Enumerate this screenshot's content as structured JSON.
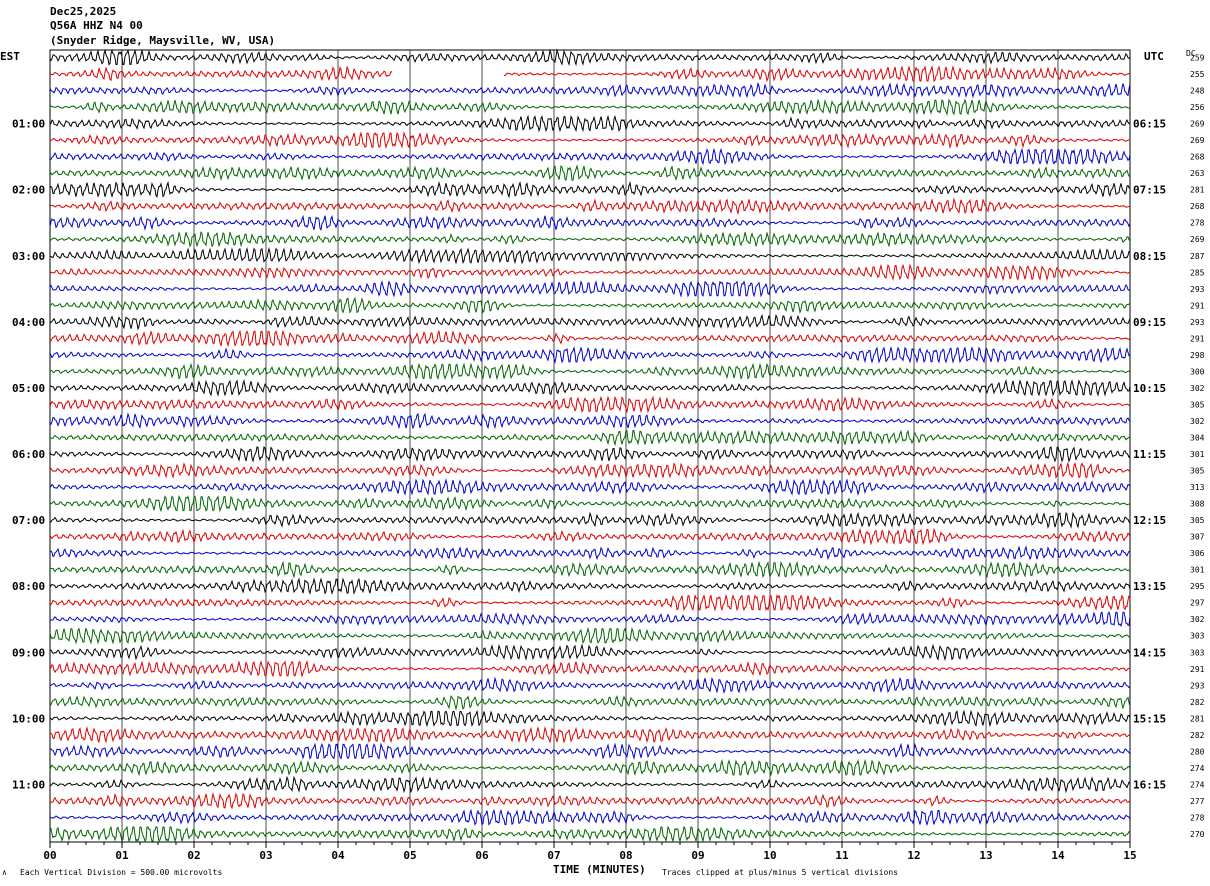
{
  "header": {
    "date": "Dec25,2025",
    "station": "Q56A HHZ N4 00",
    "location": "(Snyder Ridge, Maysville, WV, USA)"
  },
  "left_tz_label": "EST",
  "right_tz_label": "UTC",
  "dc_label": "DC",
  "xlabel": "TIME (MINUTES)",
  "footer_left": "Each Vertical Division =  500.00 microvolts",
  "footer_right": "Traces clipped at plus/minus 5 vertical divisions",
  "chart_data": {
    "type": "line",
    "xlabel": "TIME (MINUTES)",
    "xlim": [
      0,
      15
    ],
    "x_ticks": [
      "00",
      "01",
      "02",
      "03",
      "04",
      "05",
      "06",
      "07",
      "08",
      "09",
      "10",
      "11",
      "12",
      "13",
      "14",
      "15"
    ],
    "left_time_labels": [
      "01:00",
      "02:00",
      "03:00",
      "04:00",
      "05:00",
      "06:00",
      "07:00",
      "08:00",
      "09:00",
      "10:00",
      "11:00"
    ],
    "right_time_labels": [
      "06:15",
      "07:15",
      "08:15",
      "09:15",
      "10:15",
      "11:15",
      "12:15",
      "13:15",
      "14:15",
      "15:15",
      "16:15"
    ],
    "trace_colors": [
      "#000000",
      "#dd0000",
      "#0000cc",
      "#006600"
    ],
    "num_traces": 48,
    "dc_offsets": [
      259,
      255,
      248,
      256,
      269,
      269,
      268,
      263,
      281,
      268,
      278,
      269,
      287,
      285,
      293,
      291,
      293,
      291,
      298,
      300,
      302,
      305,
      302,
      304,
      301,
      305,
      313,
      308,
      305,
      307,
      306,
      301,
      295,
      297,
      302,
      303,
      303,
      291,
      293,
      282,
      281,
      282,
      280,
      274,
      274,
      277,
      278,
      270
    ],
    "gap_trace_index": 1,
    "gap_minutes": [
      4.75,
      6.3
    ],
    "amplitude_divisions": 0.3,
    "clip_divisions": 5
  }
}
